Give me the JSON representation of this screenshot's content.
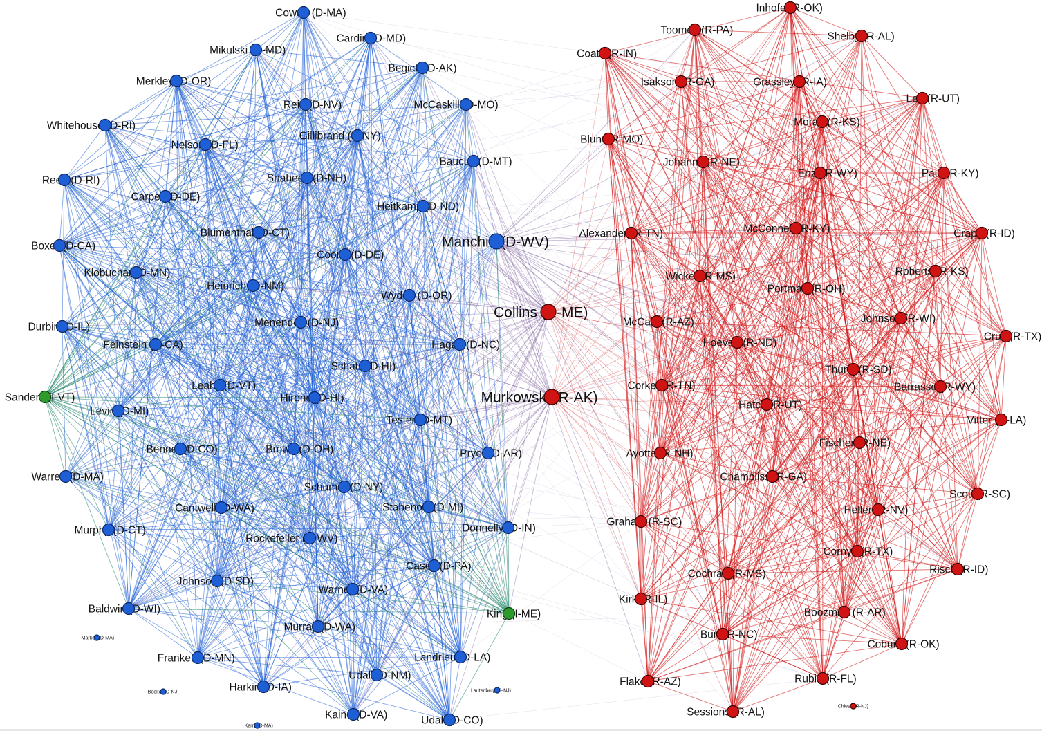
{
  "colors": {
    "democrat": "#1f5fd6",
    "republican": "#d01414",
    "independent": "#2c9b2c",
    "cross": "#7a5a9a"
  },
  "nodes": [
    {
      "label": "Cowan (D-MA)",
      "party": "D"
    },
    {
      "label": "Cardin (D-MD)",
      "party": "D"
    },
    {
      "label": "Mikulski (D-MD)",
      "party": "D"
    },
    {
      "label": "Begich (D-AK)",
      "party": "D"
    },
    {
      "label": "Merkley (D-OR)",
      "party": "D"
    },
    {
      "label": "Reid (D-NV)",
      "party": "D"
    },
    {
      "label": "McCaskill (D-MO)",
      "party": "D"
    },
    {
      "label": "Whitehouse (D-RI)",
      "party": "D"
    },
    {
      "label": "Gillibrand (D-NY)",
      "party": "D"
    },
    {
      "label": "Nelson (D-FL)",
      "party": "D"
    },
    {
      "label": "Baucus (D-MT)",
      "party": "D"
    },
    {
      "label": "Reed (D-RI)",
      "party": "D"
    },
    {
      "label": "Shaheen (D-NH)",
      "party": "D"
    },
    {
      "label": "Carper (D-DE)",
      "party": "D"
    },
    {
      "label": "Heitkamp (D-ND)",
      "party": "D"
    },
    {
      "label": "Blumenthal (D-CT)",
      "party": "D"
    },
    {
      "label": "Manchin (D-WV)",
      "party": "D"
    },
    {
      "label": "Boxer (D-CA)",
      "party": "D"
    },
    {
      "label": "Coons (D-DE)",
      "party": "D"
    },
    {
      "label": "Klobuchar (D-MN)",
      "party": "D"
    },
    {
      "label": "Heinrich (D-NM)",
      "party": "D"
    },
    {
      "label": "Wyden (D-OR)",
      "party": "D"
    },
    {
      "label": "Menendez (D-NJ)",
      "party": "D"
    },
    {
      "label": "Durbin (D-IL)",
      "party": "D"
    },
    {
      "label": "Feinstein (D-CA)",
      "party": "D"
    },
    {
      "label": "Hagan (D-NC)",
      "party": "D"
    },
    {
      "label": "Schatz (D-HI)",
      "party": "D"
    },
    {
      "label": "Leahy (D-VT)",
      "party": "D"
    },
    {
      "label": "Hirono (D-HI)",
      "party": "D"
    },
    {
      "label": "Levin (D-MI)",
      "party": "D"
    },
    {
      "label": "Tester (D-MT)",
      "party": "D"
    },
    {
      "label": "Bennet (D-CO)",
      "party": "D"
    },
    {
      "label": "Brown (D-OH)",
      "party": "D"
    },
    {
      "label": "Pryor (D-AR)",
      "party": "D"
    },
    {
      "label": "Warren (D-MA)",
      "party": "D"
    },
    {
      "label": "Schumer (D-NY)",
      "party": "D"
    },
    {
      "label": "Cantwell (D-WA)",
      "party": "D"
    },
    {
      "label": "Stabenow (D-MI)",
      "party": "D"
    },
    {
      "label": "Murphy (D-CT)",
      "party": "D"
    },
    {
      "label": "Rockefeller (D-WV)",
      "party": "D"
    },
    {
      "label": "Donnelly (D-IN)",
      "party": "D"
    },
    {
      "label": "Casey (D-PA)",
      "party": "D"
    },
    {
      "label": "Johnson (D-SD)",
      "party": "D"
    },
    {
      "label": "Warner (D-VA)",
      "party": "D"
    },
    {
      "label": "Baldwin (D-WI)",
      "party": "D"
    },
    {
      "label": "Murray (D-WA)",
      "party": "D"
    },
    {
      "label": "Franken (D-MN)",
      "party": "D"
    },
    {
      "label": "Landrieu (D-LA)",
      "party": "D"
    },
    {
      "label": "Udall (D-NM)",
      "party": "D"
    },
    {
      "label": "Harkin (D-IA)",
      "party": "D"
    },
    {
      "label": "Kaine (D-VA)",
      "party": "D"
    },
    {
      "label": "Udall (D-CO)",
      "party": "D"
    },
    {
      "label": "Markey (D-MA)",
      "party": "D"
    },
    {
      "label": "Booker (D-NJ)",
      "party": "D"
    },
    {
      "label": "Lautenberg (D-NJ)",
      "party": "D"
    },
    {
      "label": "Kerry (D-MA)",
      "party": "D"
    },
    {
      "label": "Sanders (I-VT)",
      "party": "I"
    },
    {
      "label": "King (I-ME)",
      "party": "I"
    },
    {
      "label": "Inhofe (R-OK)",
      "party": "R"
    },
    {
      "label": "Toomey (R-PA)",
      "party": "R"
    },
    {
      "label": "Shelby (R-AL)",
      "party": "R"
    },
    {
      "label": "Coats (R-IN)",
      "party": "R"
    },
    {
      "label": "Isakson (R-GA)",
      "party": "R"
    },
    {
      "label": "Grassley (R-IA)",
      "party": "R"
    },
    {
      "label": "Lee (R-UT)",
      "party": "R"
    },
    {
      "label": "Moran (R-KS)",
      "party": "R"
    },
    {
      "label": "Blunt (R-MO)",
      "party": "R"
    },
    {
      "label": "Johanns (R-NE)",
      "party": "R"
    },
    {
      "label": "Enzi (R-WY)",
      "party": "R"
    },
    {
      "label": "Paul (R-KY)",
      "party": "R"
    },
    {
      "label": "Alexander (R-TN)",
      "party": "R"
    },
    {
      "label": "McConnell (R-KY)",
      "party": "R"
    },
    {
      "label": "Crapo (R-ID)",
      "party": "R"
    },
    {
      "label": "Roberts (R-KS)",
      "party": "R"
    },
    {
      "label": "Wicker (R-MS)",
      "party": "R"
    },
    {
      "label": "Portman (R-OH)",
      "party": "R"
    },
    {
      "label": "Collins (R-ME)",
      "party": "R"
    },
    {
      "label": "Johnson (R-WI)",
      "party": "R"
    },
    {
      "label": "McCain (R-AZ)",
      "party": "R"
    },
    {
      "label": "Cruz (R-TX)",
      "party": "R"
    },
    {
      "label": "Hoeven (R-ND)",
      "party": "R"
    },
    {
      "label": "Thune (R-SD)",
      "party": "R"
    },
    {
      "label": "Barrasso (R-WY)",
      "party": "R"
    },
    {
      "label": "Corker (R-TN)",
      "party": "R"
    },
    {
      "label": "Murkowski (R-AK)",
      "party": "R"
    },
    {
      "label": "Hatch (R-UT)",
      "party": "R"
    },
    {
      "label": "Vitter (R-LA)",
      "party": "R"
    },
    {
      "label": "Fischer (R-NE)",
      "party": "R"
    },
    {
      "label": "Ayotte (R-NH)",
      "party": "R"
    },
    {
      "label": "Chambliss (R-GA)",
      "party": "R"
    },
    {
      "label": "Scott (R-SC)",
      "party": "R"
    },
    {
      "label": "Heller (R-NV)",
      "party": "R"
    },
    {
      "label": "Graham (R-SC)",
      "party": "R"
    },
    {
      "label": "Cornyn (R-TX)",
      "party": "R"
    },
    {
      "label": "Cochran (R-MS)",
      "party": "R"
    },
    {
      "label": "Risch (R-ID)",
      "party": "R"
    },
    {
      "label": "Kirk (R-IL)",
      "party": "R"
    },
    {
      "label": "Boozman (R-AR)",
      "party": "R"
    },
    {
      "label": "Burr (R-NC)",
      "party": "R"
    },
    {
      "label": "Coburn (R-OK)",
      "party": "R"
    },
    {
      "label": "Rubio (R-FL)",
      "party": "R"
    },
    {
      "label": "Flake (R-AZ)",
      "party": "R"
    },
    {
      "label": "Sessions (R-AL)",
      "party": "R"
    },
    {
      "label": "Chiesa (R-NJ)",
      "party": "R"
    }
  ]
}
